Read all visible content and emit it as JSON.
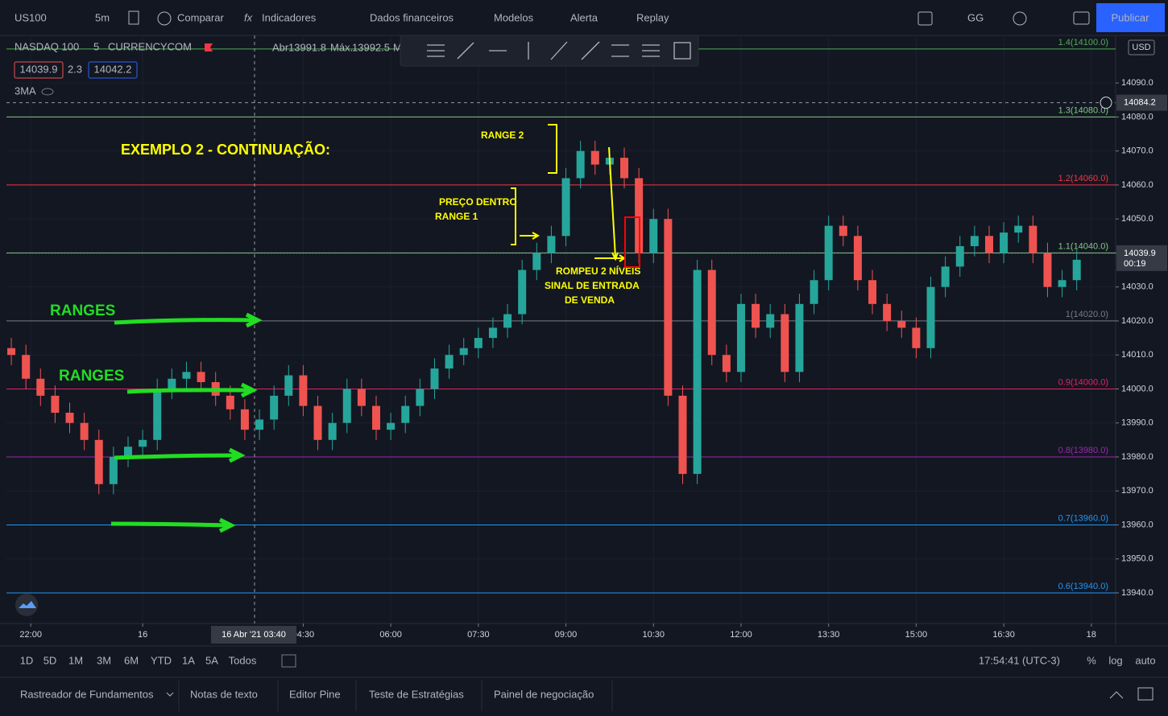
{
  "toolbar": {
    "symbol": "US100",
    "interval": "5m",
    "items": [
      "Comparar",
      "Indicadores",
      "Dados financeiros",
      "Modelos",
      "Alerta",
      "Replay"
    ],
    "layout": "GG",
    "publish": "Publicar"
  },
  "legend": {
    "symbol": "NASDAQ 100",
    "interval": "5",
    "exchange": "CURRENCYCOM",
    "open_label": "Abr",
    "open": "13991.8",
    "high_label": "Máx.",
    "high": "13992.5",
    "more": "M",
    "bid": "14039.9",
    "spread": "2.3",
    "ask": "14042.2",
    "indicator": "3MA"
  },
  "chart_data": {
    "type": "candlestick",
    "currency": "USD",
    "up_color": "#26a69a",
    "down_color": "#ef5350",
    "grid": true,
    "x": [
      1,
      4,
      7,
      10,
      13,
      16,
      19,
      22,
      25,
      28,
      31,
      34,
      37,
      40,
      43,
      46,
      49,
      52,
      55,
      58,
      61,
      64,
      67,
      70,
      73,
      76,
      79,
      82,
      85,
      88,
      91,
      94,
      97,
      100,
      103,
      106,
      109,
      112,
      115,
      118,
      121,
      124,
      127,
      130,
      133,
      136,
      139,
      142,
      145,
      148,
      151,
      154,
      157,
      160,
      163,
      166,
      169,
      172,
      175,
      178,
      181,
      184,
      187,
      190,
      193,
      196,
      199,
      202,
      205,
      208,
      211,
      214,
      217,
      220
    ],
    "open": [
      14012,
      14010,
      14003,
      13998,
      13993,
      13990,
      13985,
      13972,
      13980,
      13983,
      13985,
      14000,
      14003,
      14005,
      14002,
      13998,
      13994,
      13988,
      13991,
      13998,
      14004,
      13995,
      13985,
      13990,
      14000,
      13995,
      13988,
      13990,
      13995,
      14000,
      14006,
      14010,
      14012,
      14015,
      14018,
      14022,
      14035,
      14040,
      14045,
      14062,
      14070,
      14066,
      14068,
      14062,
      14040,
      14050,
      13998,
      13975,
      14035,
      14010,
      14005,
      14025,
      14018,
      14022,
      14005,
      14025,
      14032,
      14048,
      14045,
      14032,
      14025,
      14020,
      14018,
      14012,
      14030,
      14036,
      14042,
      14045,
      14040,
      14046,
      14048,
      14040,
      14030,
      14032
    ],
    "high": [
      14015,
      14013,
      14006,
      14001,
      13996,
      13993,
      13988,
      13983,
      13986,
      13988,
      14003,
      14006,
      14008,
      14008,
      14005,
      14001,
      13997,
      13994,
      14001,
      14007,
      14007,
      13998,
      13993,
      14003,
      14003,
      13998,
      13993,
      13998,
      14003,
      14009,
      14013,
      14015,
      14018,
      14021,
      14025,
      14038,
      14043,
      14048,
      14065,
      14073,
      14073,
      14071,
      14071,
      14065,
      14053,
      14053,
      14001,
      14038,
      14038,
      14013,
      14028,
      14028,
      14025,
      14025,
      14028,
      14035,
      14051,
      14051,
      14048,
      14035,
      14028,
      14023,
      14021,
      14033,
      14039,
      14045,
      14048,
      14048,
      14049,
      14051,
      14051,
      14043,
      14035,
      14041
    ],
    "low": [
      14007,
      14000,
      13995,
      13990,
      13987,
      13982,
      13969,
      13969,
      13977,
      13980,
      13982,
      13997,
      14000,
      13999,
      13995,
      13991,
      13985,
      13985,
      13988,
      13995,
      13992,
      13982,
      13982,
      13987,
      13992,
      13985,
      13985,
      13987,
      13992,
      13997,
      14003,
      14007,
      14009,
      14012,
      14015,
      14019,
      14032,
      14037,
      14042,
      14059,
      14063,
      14063,
      14059,
      14037,
      14037,
      13995,
      13972,
      13972,
      14007,
      14002,
      14002,
      14015,
      14015,
      14002,
      14002,
      14022,
      14029,
      14042,
      14029,
      14022,
      14017,
      14015,
      14009,
      14009,
      14027,
      14033,
      14039,
      14037,
      14037,
      14043,
      14037,
      14027,
      14027,
      14029
    ],
    "close": [
      14010,
      14003,
      13998,
      13993,
      13990,
      13985,
      13972,
      13980,
      13983,
      13985,
      14000,
      14003,
      14005,
      14002,
      13998,
      13994,
      13988,
      13991,
      13998,
      14004,
      13995,
      13985,
      13990,
      14000,
      13995,
      13988,
      13990,
      13995,
      14000,
      14006,
      14010,
      14012,
      14015,
      14018,
      14022,
      14035,
      14040,
      14045,
      14062,
      14070,
      14066,
      14068,
      14062,
      14040,
      14050,
      13998,
      13975,
      14035,
      14010,
      14005,
      14025,
      14018,
      14022,
      14005,
      14025,
      14032,
      14048,
      14045,
      14032,
      14025,
      14020,
      14018,
      14012,
      14030,
      14036,
      14042,
      14045,
      14040,
      14046,
      14048,
      14040,
      14030,
      14032,
      14038
    ],
    "xlim": [
      0,
      228
    ],
    "xticks": [
      {
        "value": 5,
        "label": "22:00"
      },
      {
        "value": 28,
        "label": "16"
      },
      {
        "value": 61,
        "label": "04:30"
      },
      {
        "value": 79,
        "label": "06:00"
      },
      {
        "value": 97,
        "label": "07:30"
      },
      {
        "value": 115,
        "label": "09:00"
      },
      {
        "value": 133,
        "label": "10:30"
      },
      {
        "value": 151,
        "label": "12:00"
      },
      {
        "value": 169,
        "label": "13:30"
      },
      {
        "value": 187,
        "label": "15:00"
      },
      {
        "value": 205,
        "label": "16:30"
      },
      {
        "value": 223,
        "label": "18"
      }
    ],
    "ylim": [
      13931,
      14104
    ],
    "yticks": [
      {
        "value": 13940,
        "label": "13940.0"
      },
      {
        "value": 13950,
        "label": "13950.0"
      },
      {
        "value": 13960,
        "label": "13960.0"
      },
      {
        "value": 13970,
        "label": "13970.0"
      },
      {
        "value": 13980,
        "label": "13980.0"
      },
      {
        "value": 13990,
        "label": "13990.0"
      },
      {
        "value": 14000,
        "label": "14000.0"
      },
      {
        "value": 14010,
        "label": "14010.0"
      },
      {
        "value": 14020,
        "label": "14020.0"
      },
      {
        "value": 14030,
        "label": "14030.0"
      },
      {
        "value": 14040,
        "label": "14040.0"
      },
      {
        "value": 14050,
        "label": "14050.0"
      },
      {
        "value": 14060,
        "label": "14060.0"
      },
      {
        "value": 14070,
        "label": "14070.0"
      },
      {
        "value": 14080,
        "label": "14080.0"
      },
      {
        "value": 14090,
        "label": "14090.0"
      }
    ],
    "levels": [
      {
        "value": 14100,
        "label": "1.4(14100.0)",
        "color": "#4caf50"
      },
      {
        "value": 14080,
        "label": "1.3(14080.0)",
        "color": "#81c784"
      },
      {
        "value": 14060,
        "label": "1.2(14060.0)",
        "color": "#f23645"
      },
      {
        "value": 14040,
        "label": "1.1(14040.0)",
        "color": "#81c784"
      },
      {
        "value": 14020,
        "label": "1(14020.0)",
        "color": "#787b86"
      },
      {
        "value": 14000,
        "label": "0.9(14000.0)",
        "color": "#e91e63"
      },
      {
        "value": 13980,
        "label": "0.8(13980.0)",
        "color": "#9c27b0"
      },
      {
        "value": 13960,
        "label": "0.7(13960.0)",
        "color": "#2196f3"
      },
      {
        "value": 13940,
        "label": "0.6(13940.0)",
        "color": "#2196f3"
      }
    ],
    "annotations": [
      {
        "text": "EXEMPLO 2 - CONTINUAÇÃO:",
        "color": "#ffff00"
      },
      {
        "text": "RANGE 2",
        "color": "#ffff00"
      },
      {
        "text": "PREÇO DENTRO",
        "color": "#ffff00"
      },
      {
        "text": "RANGE 1",
        "color": "#ffff00"
      },
      {
        "text": "ROMPEU 2 NÍVEIS",
        "color": "#ffff00"
      },
      {
        "text": "SINAL DE ENTRADA",
        "color": "#ffff00"
      },
      {
        "text": "DE VENDA",
        "color": "#ffff00"
      },
      {
        "text": "RANGES",
        "color": "#22dd22"
      },
      {
        "text": "RANGES",
        "color": "#22dd22"
      }
    ],
    "crosshair": {
      "price": 14084.2,
      "time": "16 Abr '21  03:40"
    },
    "last_price": 14039.9,
    "countdown": "00:19"
  },
  "timeframes": [
    "1D",
    "5D",
    "1M",
    "3M",
    "6M",
    "YTD",
    "1A",
    "5A",
    "Todos"
  ],
  "clock": "17:54:41 (UTC-3)",
  "scale_options": [
    "%",
    "log",
    "auto"
  ],
  "tabs": [
    "Rastreador de Fundamentos",
    "Notas de texto",
    "Editor Pine",
    "Teste de Estratégias",
    "Painel de negociação"
  ]
}
